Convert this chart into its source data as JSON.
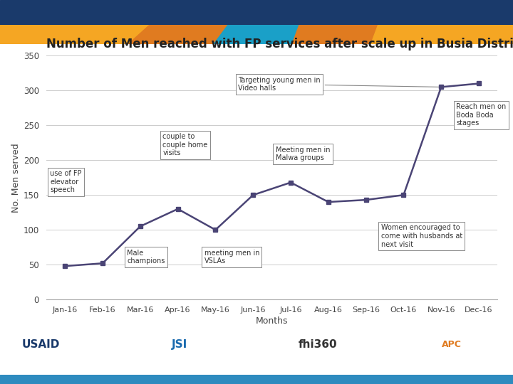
{
  "title": "Number of Men reached with FP services after scale up in Busia District",
  "xlabel": "Months",
  "ylabel": "No. Men served",
  "months": [
    "Jan-16",
    "Feb-16",
    "Mar-16",
    "Apr-16",
    "May-16",
    "Jun-16",
    "Jul-16",
    "Aug-16",
    "Sep-16",
    "Oct-16",
    "Nov-16",
    "Dec-16"
  ],
  "values": [
    48,
    52,
    105,
    130,
    100,
    150,
    168,
    140,
    143,
    150,
    305,
    310
  ],
  "ylim": [
    0,
    350
  ],
  "yticks": [
    0,
    50,
    100,
    150,
    200,
    250,
    300,
    350
  ],
  "line_color": "#4a4475",
  "marker_color": "#4a4475",
  "bg_color": "#ffffff",
  "grid_color": "#cccccc",
  "top_bar_color": "#1a3a6b",
  "bottom_bar_color": "#2e8bbf",
  "banner_colors": [
    "#f5a623",
    "#e07b20",
    "#f5c84a",
    "#1aa0c8",
    "#1aa0c8",
    "#f5c84a",
    "#e07b20",
    "#f5a623"
  ],
  "title_fontsize": 12,
  "axis_fontsize": 8,
  "ylabel_fontsize": 8,
  "annotation_fontsize": 7
}
